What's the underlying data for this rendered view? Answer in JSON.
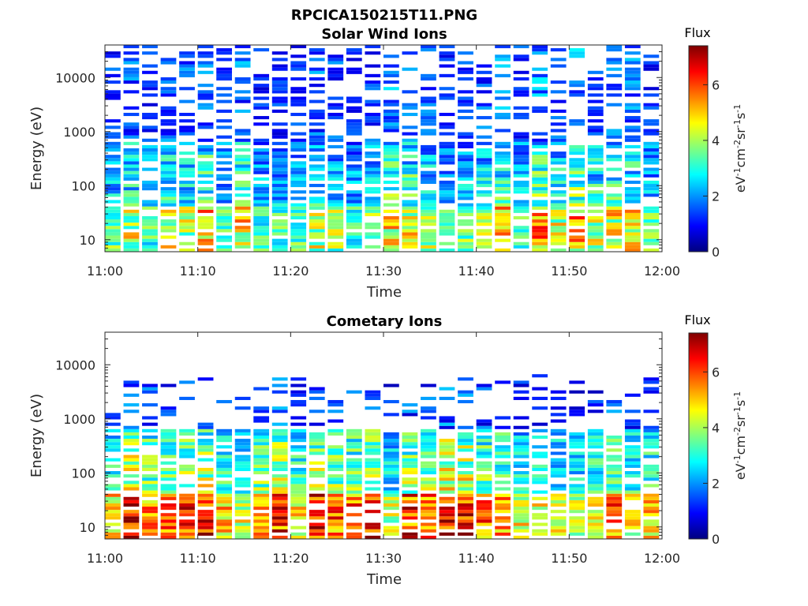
{
  "figure_title": "RPCICA150215T11.PNG",
  "colormap": [
    "#00007f",
    "#0000ff",
    "#007fff",
    "#00ffff",
    "#7fff7f",
    "#ffff00",
    "#ff7f00",
    "#ff0000",
    "#7f0000"
  ],
  "chart_data": [
    {
      "type": "heatmap",
      "title": "Solar Wind Ions",
      "xlabel": "Time",
      "ylabel": "Energy (eV)",
      "x_ticks": [
        "11:00",
        "11:10",
        "11:20",
        "11:30",
        "11:40",
        "11:50",
        "12:00"
      ],
      "y_ticks": [
        "10",
        "100",
        "1000",
        "10000"
      ],
      "x_range": [
        "11:00",
        "12:00"
      ],
      "y_range": [
        6,
        40000
      ],
      "y_scale": "log",
      "colorbar": {
        "title": "Flux",
        "ticks": [
          "0",
          "2",
          "4",
          "6"
        ],
        "range": [
          0,
          7.4
        ],
        "unit_label": "eV-1cm-2sr-1s-1"
      },
      "seed": 7,
      "profile": {
        "low_peak_log": 1.35,
        "low_level": 4.1,
        "mid_level": 2.9,
        "high_level": 1.2,
        "top_log": 4.6,
        "occupancy_high": 0.45
      }
    },
    {
      "type": "heatmap",
      "title": "Cometary Ions",
      "xlabel": "Time",
      "ylabel": "Energy (eV)",
      "x_ticks": [
        "11:00",
        "11:10",
        "11:20",
        "11:30",
        "11:40",
        "11:50",
        "12:00"
      ],
      "y_ticks": [
        "10",
        "100",
        "1000",
        "10000"
      ],
      "x_range": [
        "11:00",
        "12:00"
      ],
      "y_range": [
        6,
        40000
      ],
      "y_scale": "log",
      "colorbar": {
        "title": "Flux",
        "ticks": [
          "0",
          "2",
          "4",
          "6"
        ],
        "range": [
          0,
          7.4
        ],
        "unit_label": "eV-1cm-2sr-1s-1"
      },
      "seed": 19,
      "profile": {
        "low_peak_log": 1.3,
        "low_level": 5.4,
        "mid_level": 3.6,
        "high_level": 1.0,
        "top_log": 3.6,
        "occupancy_high": 0.25
      }
    }
  ]
}
